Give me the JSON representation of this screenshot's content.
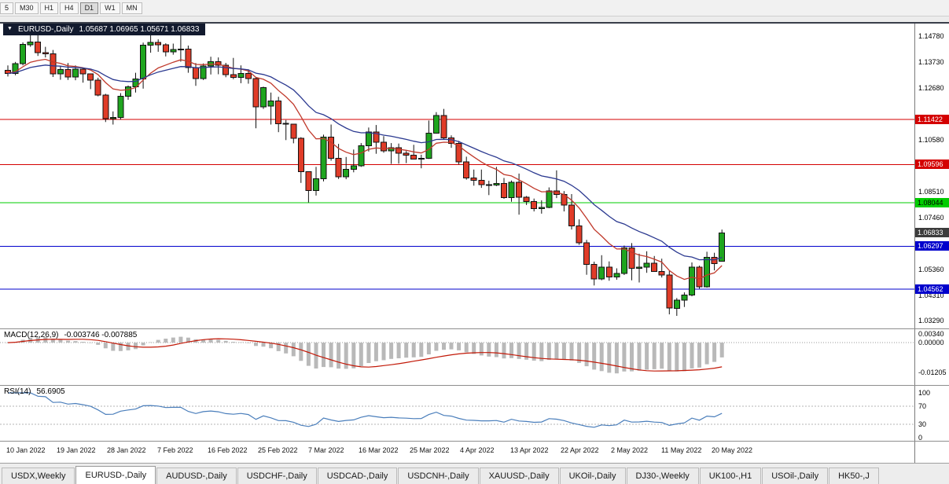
{
  "toolbar": {
    "periods": [
      {
        "label": "5",
        "active": false
      },
      {
        "label": "M30",
        "active": false
      },
      {
        "label": "H1",
        "active": false
      },
      {
        "label": "H4",
        "active": false
      },
      {
        "label": "D1",
        "active": true
      },
      {
        "label": "W1",
        "active": false
      },
      {
        "label": "MN",
        "active": false
      }
    ]
  },
  "chart_info": {
    "collapse_icon": "▼",
    "symbol": "EURUSD-,Daily",
    "ohlc": "1.05687 1.06965 1.05671 1.06833"
  },
  "indicators": {
    "macd": {
      "label": "MACD(12,26,9)",
      "values": "-0.003746 -0.007885",
      "params": {
        "fast": 12,
        "slow": 26,
        "signal": 9
      },
      "axis_ticks": [
        {
          "label": "0.00340",
          "value": 0.0034
        },
        {
          "label": "0.00000",
          "value": 0
        },
        {
          "label": "-0.01205",
          "value": -0.01205
        }
      ],
      "range": {
        "top": 0.0048,
        "bottom": -0.0165
      },
      "colors": {
        "histogram": "#b9b9b9",
        "signal": "#c21807",
        "zero": "#999999"
      }
    },
    "rsi": {
      "label": "RSI(14)",
      "value": "56.6905",
      "period": 14,
      "axis_ticks": [
        {
          "label": "100",
          "value": 100
        },
        {
          "label": "70",
          "value": 70
        },
        {
          "label": "30",
          "value": 30
        },
        {
          "label": "0",
          "value": 0
        }
      ],
      "levels": [
        70,
        30
      ],
      "colors": {
        "line": "#4a7ebb",
        "level": "#b5b5b5"
      }
    }
  },
  "chart_data": {
    "type": "candlestick",
    "title": "EURUSD-,Daily",
    "price_axis": {
      "top": 1.15288,
      "bottom": 1.02973,
      "ticks": [
        "1.14780",
        "1.13730",
        "1.12680",
        "1.10580",
        "1.08510",
        "1.07460",
        "1.05360",
        "1.04310",
        "1.03290"
      ]
    },
    "x_labels": [
      "10 Jan 2022",
      "19 Jan 2022",
      "28 Jan 2022",
      "7 Feb 2022",
      "16 Feb 2022",
      "25 Feb 2022",
      "7 Mar 2022",
      "16 Mar 2022",
      "25 Mar 2022",
      "4 Apr 2022",
      "13 Apr 2022",
      "22 Apr 2022",
      "2 May 2022",
      "11 May 2022",
      "20 May 2022"
    ],
    "hlines": [
      {
        "label": "1.11422",
        "value": 1.11422,
        "color": "#d40000",
        "text": "#ffffff"
      },
      {
        "label": "1.09596",
        "value": 1.09596,
        "color": "#d40000",
        "text": "#ffffff"
      },
      {
        "label": "1.08044",
        "value": 1.08044,
        "color": "#00cc00",
        "text": "#000000"
      },
      {
        "label": "1.06297",
        "value": 1.06297,
        "color": "#0000cc",
        "text": "#ffffff"
      },
      {
        "label": "1.04562",
        "value": 1.04562,
        "color": "#0000cc",
        "text": "#ffffff"
      }
    ],
    "current_price": {
      "label": "1.06833",
      "value": 1.06833,
      "bg": "#3c3c3c",
      "text": "#ffffff"
    },
    "moving_averages": [
      {
        "period": 10,
        "color": "#c0392b"
      },
      {
        "period": 21,
        "color": "#2b3990"
      }
    ],
    "colors": {
      "up": "#1fa51f",
      "down": "#e03c28",
      "outline": "#111111",
      "background": "#ffffff"
    },
    "candles": [
      [
        1.134,
        1.136,
        1.1315,
        1.1327
      ],
      [
        1.1327,
        1.1374,
        1.132,
        1.1367
      ],
      [
        1.1367,
        1.1453,
        1.136,
        1.1444
      ],
      [
        1.1444,
        1.1482,
        1.1435,
        1.1455
      ],
      [
        1.1455,
        1.1483,
        1.1398,
        1.1412
      ],
      [
        1.1412,
        1.1435,
        1.1392,
        1.1406
      ],
      [
        1.1406,
        1.1422,
        1.1313,
        1.1325
      ],
      [
        1.1325,
        1.1358,
        1.1302,
        1.1343
      ],
      [
        1.1343,
        1.1369,
        1.1301,
        1.1313
      ],
      [
        1.1313,
        1.136,
        1.13,
        1.1344
      ],
      [
        1.1344,
        1.1349,
        1.129,
        1.1325
      ],
      [
        1.1325,
        1.1327,
        1.1264,
        1.1301
      ],
      [
        1.1301,
        1.131,
        1.1235,
        1.124
      ],
      [
        1.124,
        1.1245,
        1.1131,
        1.1145
      ],
      [
        1.1145,
        1.1174,
        1.1121,
        1.115
      ],
      [
        1.115,
        1.1248,
        1.1141,
        1.1235
      ],
      [
        1.1235,
        1.1279,
        1.1221,
        1.1273
      ],
      [
        1.1273,
        1.133,
        1.125,
        1.1305
      ],
      [
        1.1305,
        1.1452,
        1.1266,
        1.1441
      ],
      [
        1.1441,
        1.1483,
        1.1411,
        1.1453
      ],
      [
        1.1453,
        1.1465,
        1.1415,
        1.1443
      ],
      [
        1.1443,
        1.1449,
        1.1396,
        1.1415
      ],
      [
        1.1415,
        1.1448,
        1.1403,
        1.1424
      ],
      [
        1.1424,
        1.1495,
        1.1375,
        1.1426
      ],
      [
        1.1426,
        1.144,
        1.133,
        1.1351
      ],
      [
        1.1351,
        1.1369,
        1.1277,
        1.1306
      ],
      [
        1.1306,
        1.1368,
        1.1301,
        1.1358
      ],
      [
        1.1358,
        1.1395,
        1.1323,
        1.1375
      ],
      [
        1.1375,
        1.1392,
        1.1324,
        1.136
      ],
      [
        1.136,
        1.137,
        1.1312,
        1.1323
      ],
      [
        1.1323,
        1.139,
        1.1304,
        1.1311
      ],
      [
        1.1311,
        1.136,
        1.1288,
        1.1328
      ],
      [
        1.1328,
        1.1344,
        1.1286,
        1.1306
      ],
      [
        1.1306,
        1.131,
        1.1106,
        1.1193
      ],
      [
        1.1193,
        1.1274,
        1.1184,
        1.127
      ],
      [
        1.1195,
        1.125,
        1.1121,
        1.1216
      ],
      [
        1.1216,
        1.1233,
        1.109,
        1.1125
      ],
      [
        1.1125,
        1.1139,
        1.1058,
        1.1122
      ],
      [
        1.1122,
        1.1124,
        1.1045,
        1.1065
      ],
      [
        1.1065,
        1.107,
        1.0885,
        1.093
      ],
      [
        1.093,
        1.0932,
        1.0806,
        1.0854
      ],
      [
        1.0854,
        1.095,
        1.0834,
        1.0902
      ],
      [
        1.0902,
        1.108,
        1.0891,
        1.107
      ],
      [
        1.107,
        1.1121,
        1.0975,
        1.0985
      ],
      [
        1.0985,
        1.1043,
        1.0901,
        1.091
      ],
      [
        1.091,
        1.099,
        1.09,
        1.094
      ],
      [
        1.094,
        1.102,
        1.0928,
        1.0955
      ],
      [
        1.0955,
        1.1046,
        1.095,
        1.1035
      ],
      [
        1.1035,
        1.1109,
        1.1012,
        1.109
      ],
      [
        1.109,
        1.1119,
        1.1003,
        1.105
      ],
      [
        1.105,
        1.1074,
        1.1007,
        1.1015
      ],
      [
        1.1015,
        1.1046,
        1.0962,
        1.1028
      ],
      [
        1.1028,
        1.1044,
        1.0963,
        1.1005
      ],
      [
        1.1005,
        1.1014,
        1.0965,
        1.0997
      ],
      [
        1.0997,
        1.1039,
        1.098,
        1.0982
      ],
      [
        1.0982,
        1.0999,
        1.0944,
        1.0985
      ],
      [
        1.0985,
        1.1137,
        1.0982,
        1.1086
      ],
      [
        1.1086,
        1.1171,
        1.1084,
        1.1158
      ],
      [
        1.1158,
        1.1184,
        1.1061,
        1.1067
      ],
      [
        1.1067,
        1.1077,
        1.1027,
        1.1045
      ],
      [
        1.1045,
        1.1055,
        1.096,
        1.097
      ],
      [
        1.097,
        1.0991,
        1.0898,
        1.0905
      ],
      [
        1.0905,
        1.0939,
        1.0874,
        1.0895
      ],
      [
        1.0895,
        1.0939,
        1.0865,
        1.0878
      ],
      [
        1.0878,
        1.0894,
        1.0836,
        1.0876
      ],
      [
        1.0876,
        1.095,
        1.0872,
        1.0883
      ],
      [
        1.0883,
        1.0905,
        1.0821,
        1.0826
      ],
      [
        1.0826,
        1.0895,
        1.0809,
        1.0887
      ],
      [
        1.0887,
        1.0923,
        1.0757,
        1.0827
      ],
      [
        1.0827,
        1.0832,
        1.0796,
        1.081
      ],
      [
        1.081,
        1.0822,
        1.077,
        1.0781
      ],
      [
        1.0781,
        1.0815,
        1.0761,
        1.0786
      ],
      [
        1.0786,
        1.0867,
        1.0783,
        1.0852
      ],
      [
        1.0852,
        1.0936,
        1.0824,
        1.0838
      ],
      [
        1.0838,
        1.0852,
        1.077,
        1.0795
      ],
      [
        1.0795,
        1.084,
        1.0697,
        1.0712
      ],
      [
        1.0712,
        1.0738,
        1.0635,
        1.0643
      ],
      [
        1.0643,
        1.0655,
        1.0514,
        1.0556
      ],
      [
        1.0556,
        1.0567,
        1.0471,
        1.0498
      ],
      [
        1.0498,
        1.0593,
        1.0492,
        1.0545
      ],
      [
        1.0545,
        1.0568,
        1.049,
        1.0505
      ],
      [
        1.0505,
        1.054,
        1.0494,
        1.052
      ],
      [
        1.052,
        1.0632,
        1.0513,
        1.0622
      ],
      [
        1.0622,
        1.0642,
        1.0492,
        1.054
      ],
      [
        1.054,
        1.0599,
        1.0483,
        1.0545
      ],
      [
        1.0545,
        1.0609,
        1.0522,
        1.056
      ],
      [
        1.056,
        1.059,
        1.0526,
        1.0528
      ],
      [
        1.0528,
        1.0579,
        1.0503,
        1.0513
      ],
      [
        1.0513,
        1.0529,
        1.0354,
        1.0379
      ],
      [
        1.0379,
        1.042,
        1.0348,
        1.0411
      ],
      [
        1.0411,
        1.0443,
        1.0384,
        1.0432
      ],
      [
        1.0432,
        1.0564,
        1.0427,
        1.0545
      ],
      [
        1.0545,
        1.0551,
        1.0458,
        1.0465
      ],
      [
        1.0465,
        1.0607,
        1.0462,
        1.0585
      ],
      [
        1.0585,
        1.0603,
        1.0532,
        1.056
      ],
      [
        1.05687,
        1.06965,
        1.05671,
        1.06833
      ]
    ]
  },
  "tabs": [
    {
      "label": "USDX,Weekly",
      "active": false
    },
    {
      "label": "EURUSD-,Daily",
      "active": true
    },
    {
      "label": "AUDUSD-,Daily",
      "active": false
    },
    {
      "label": "USDCHF-,Daily",
      "active": false
    },
    {
      "label": "USDCAD-,Daily",
      "active": false
    },
    {
      "label": "USDCNH-,Daily",
      "active": false
    },
    {
      "label": "XAUUSD-,Daily",
      "active": false
    },
    {
      "label": "UKOil-,Daily",
      "active": false
    },
    {
      "label": "DJ30-,Weekly",
      "active": false
    },
    {
      "label": "UK100-,H1",
      "active": false
    },
    {
      "label": "USOil-,Daily",
      "active": false
    },
    {
      "label": "HK50-,J",
      "active": false
    }
  ]
}
